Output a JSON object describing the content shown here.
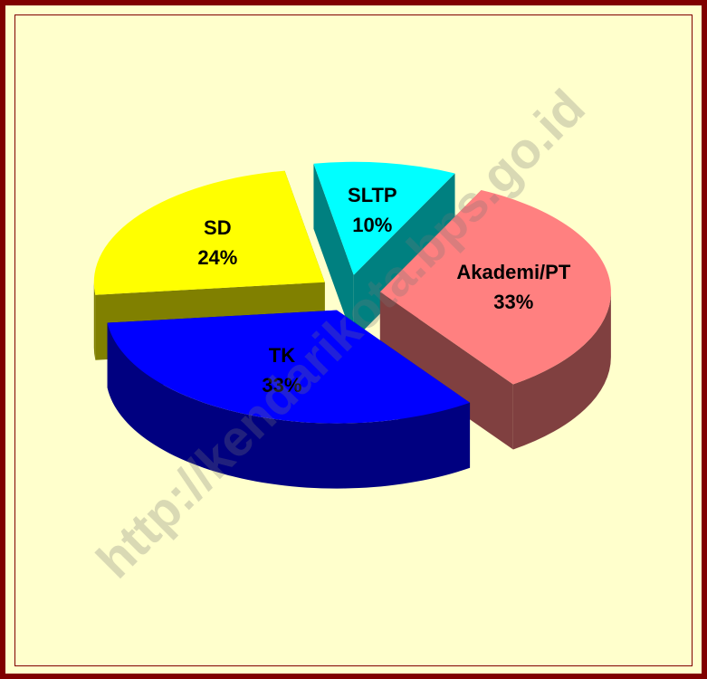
{
  "chart_data": {
    "type": "pie3d",
    "categories": [
      "SLTP",
      "Akademi/PT",
      "TK",
      "SD"
    ],
    "values": [
      10,
      33,
      33,
      24
    ],
    "value_labels": [
      "10%",
      "33%",
      "33%",
      "24%"
    ],
    "colors": [
      "#00ffff",
      "#ff8080",
      "#0000ff",
      "#ffff00"
    ],
    "side_colors": [
      "#008080",
      "#804040",
      "#000080",
      "#808000"
    ],
    "watermark": "http://kendarikota.bps.go.id"
  }
}
